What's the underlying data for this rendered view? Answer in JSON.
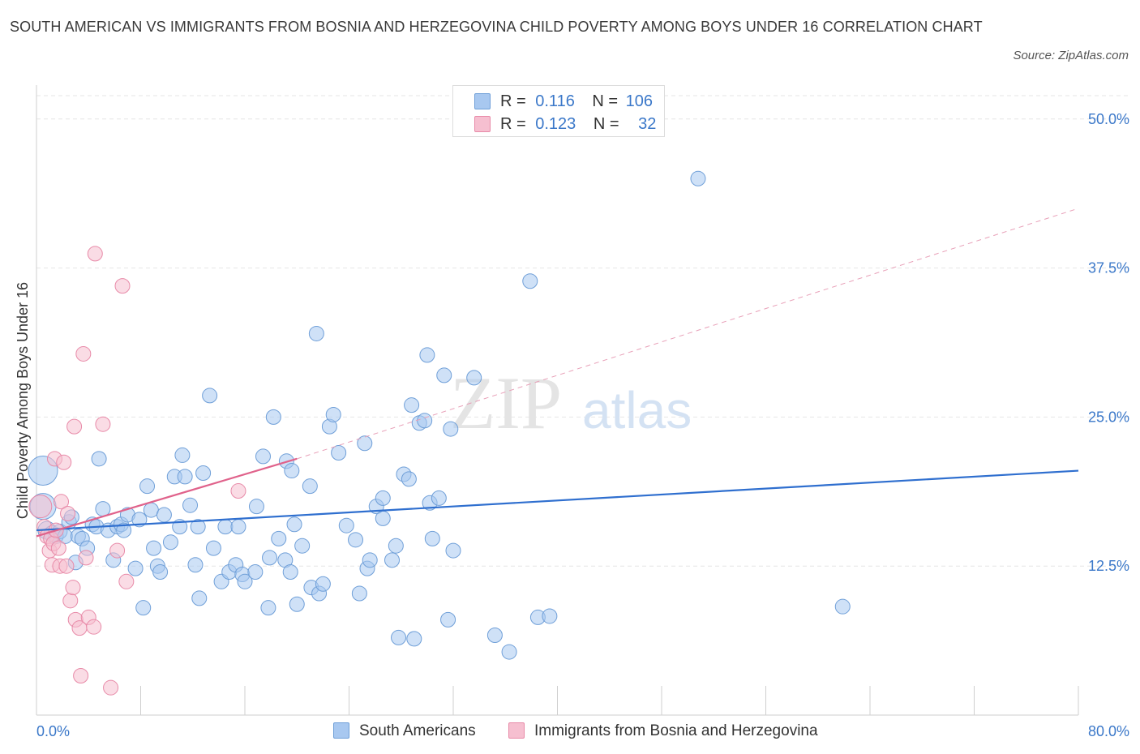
{
  "header": {
    "title": "SOUTH AMERICAN VS IMMIGRANTS FROM BOSNIA AND HERZEGOVINA CHILD POVERTY AMONG BOYS UNDER 16 CORRELATION CHART",
    "source": "Source: ZipAtlas.com"
  },
  "watermark": {
    "zip": "ZIP",
    "atlas": "atlas"
  },
  "colors": {
    "blue_fill": "#a8c8f0",
    "blue_stroke": "#6f9fd8",
    "blue_line": "#2f6fcf",
    "pink_fill": "#f6bfd0",
    "pink_stroke": "#e88aa8",
    "pink_line": "#e0628b",
    "axis_label": "#3b78c9",
    "grid": "#e6e6e6"
  },
  "legend": {
    "rows": [
      {
        "r_label": "R =",
        "r_value": "0.116",
        "n_label": "N =",
        "n_value": "106",
        "series": "blue"
      },
      {
        "r_label": "R =",
        "r_value": "0.123",
        "n_label": "N =",
        "n_value": "32",
        "series": "pink"
      }
    ]
  },
  "bottom_legend": [
    {
      "label": "South Americans",
      "series": "blue"
    },
    {
      "label": "Immigrants from Bosnia and Herzegovina",
      "series": "pink"
    }
  ],
  "chart_data": {
    "type": "scatter",
    "title": "SOUTH AMERICAN VS IMMIGRANTS FROM BOSNIA AND HERZEGOVINA CHILD POVERTY AMONG BOYS UNDER 16 CORRELATION CHART",
    "xlabel": "",
    "ylabel": "Child Poverty Among Boys Under 16",
    "xlim": [
      0,
      80
    ],
    "ylim": [
      0,
      52.5
    ],
    "x_tick_labels": [
      {
        "value": 0,
        "label": "0.0%"
      },
      {
        "value": 80,
        "label": "80.0%"
      }
    ],
    "y_tick_labels": [
      {
        "value": 12.5,
        "label": "12.5%"
      },
      {
        "value": 25,
        "label": "25.0%"
      },
      {
        "value": 37.5,
        "label": "37.5%"
      },
      {
        "value": 50,
        "label": "50.0%"
      }
    ],
    "x_minor_ticks": [
      8,
      16,
      24,
      32,
      40,
      48,
      56,
      64,
      72,
      80
    ],
    "grid": true,
    "series": [
      {
        "name": "South Americans",
        "color": "blue",
        "R": 0.116,
        "N": 106,
        "trend": {
          "x": [
            0,
            80
          ],
          "y": [
            15.5,
            20.5
          ],
          "style": "solid"
        },
        "points": [
          [
            0.5,
            20.5,
            18
          ],
          [
            0.5,
            17.5,
            16
          ],
          [
            0.8,
            15.5,
            11
          ],
          [
            1.2,
            15.2,
            10
          ],
          [
            1.5,
            15.0,
            9
          ],
          [
            1.8,
            15.4,
            9
          ],
          [
            2.2,
            15.0,
            9
          ],
          [
            2.5,
            16.2,
            9
          ],
          [
            2.7,
            16.6,
            9
          ],
          [
            3.0,
            12.8,
            9
          ],
          [
            3.2,
            15.0,
            9
          ],
          [
            3.5,
            14.8,
            9
          ],
          [
            3.9,
            14.0,
            9
          ],
          [
            4.3,
            16.0,
            9
          ],
          [
            4.6,
            15.8,
            9
          ],
          [
            4.8,
            21.5,
            9
          ],
          [
            5.1,
            17.3,
            9
          ],
          [
            5.5,
            15.5,
            9
          ],
          [
            5.9,
            13.0,
            9
          ],
          [
            6.2,
            15.8,
            9
          ],
          [
            6.5,
            16.0,
            9
          ],
          [
            6.7,
            15.5,
            9
          ],
          [
            7.0,
            16.8,
            9
          ],
          [
            7.6,
            12.3,
            9
          ],
          [
            7.9,
            16.4,
            9
          ],
          [
            8.2,
            9.0,
            9
          ],
          [
            8.5,
            19.2,
            9
          ],
          [
            8.8,
            17.2,
            9
          ],
          [
            9.0,
            14.0,
            9
          ],
          [
            9.3,
            12.5,
            9
          ],
          [
            9.5,
            12.0,
            9
          ],
          [
            9.8,
            16.8,
            9
          ],
          [
            10.3,
            14.5,
            9
          ],
          [
            10.6,
            20.0,
            9
          ],
          [
            11.0,
            15.8,
            9
          ],
          [
            11.2,
            21.8,
            9
          ],
          [
            11.4,
            20.0,
            9
          ],
          [
            11.8,
            17.6,
            9
          ],
          [
            12.2,
            12.6,
            9
          ],
          [
            12.4,
            15.8,
            9
          ],
          [
            12.5,
            9.8,
            9
          ],
          [
            12.8,
            20.3,
            9
          ],
          [
            13.3,
            26.8,
            9
          ],
          [
            13.6,
            14.0,
            9
          ],
          [
            14.2,
            11.2,
            9
          ],
          [
            14.5,
            15.8,
            9
          ],
          [
            14.8,
            12.0,
            9
          ],
          [
            15.3,
            12.6,
            9
          ],
          [
            15.5,
            15.8,
            9
          ],
          [
            15.8,
            11.8,
            9
          ],
          [
            16.0,
            11.2,
            9
          ],
          [
            16.8,
            12.0,
            9
          ],
          [
            16.9,
            17.5,
            9
          ],
          [
            17.4,
            21.7,
            9
          ],
          [
            17.8,
            9.0,
            9
          ],
          [
            17.9,
            13.2,
            9
          ],
          [
            18.2,
            25.0,
            9
          ],
          [
            18.6,
            14.8,
            9
          ],
          [
            19.1,
            13.0,
            9
          ],
          [
            19.2,
            21.3,
            9
          ],
          [
            19.5,
            12.0,
            9
          ],
          [
            19.8,
            16.0,
            9
          ],
          [
            19.6,
            20.5,
            9
          ],
          [
            20.0,
            9.3,
            9
          ],
          [
            20.4,
            14.2,
            9
          ],
          [
            21.0,
            19.2,
            9
          ],
          [
            21.1,
            10.7,
            9
          ],
          [
            21.5,
            32.0,
            9
          ],
          [
            21.7,
            10.2,
            9
          ],
          [
            22.0,
            11.0,
            9
          ],
          [
            22.5,
            24.2,
            9
          ],
          [
            22.8,
            25.2,
            9
          ],
          [
            23.2,
            22.0,
            9
          ],
          [
            23.8,
            15.9,
            9
          ],
          [
            24.5,
            14.7,
            9
          ],
          [
            24.8,
            10.2,
            9
          ],
          [
            25.2,
            22.8,
            9
          ],
          [
            25.4,
            12.3,
            9
          ],
          [
            25.6,
            13.0,
            9
          ],
          [
            26.1,
            17.5,
            9
          ],
          [
            26.6,
            16.5,
            9
          ],
          [
            26.6,
            18.2,
            9
          ],
          [
            27.3,
            13.0,
            9
          ],
          [
            27.6,
            14.2,
            9
          ],
          [
            27.8,
            6.5,
            9
          ],
          [
            28.2,
            20.2,
            9
          ],
          [
            28.6,
            19.8,
            9
          ],
          [
            28.8,
            26.0,
            9
          ],
          [
            29.0,
            6.4,
            9
          ],
          [
            29.4,
            24.5,
            9
          ],
          [
            29.8,
            24.7,
            9
          ],
          [
            30.0,
            30.2,
            9
          ],
          [
            30.2,
            17.8,
            9
          ],
          [
            30.4,
            14.8,
            9
          ],
          [
            30.9,
            18.2,
            9
          ],
          [
            31.3,
            28.5,
            9
          ],
          [
            31.6,
            8.0,
            9
          ],
          [
            31.8,
            24.0,
            9
          ],
          [
            32.0,
            13.8,
            9
          ],
          [
            33.6,
            28.3,
            9
          ],
          [
            35.2,
            6.7,
            9
          ],
          [
            36.3,
            5.3,
            9
          ],
          [
            37.9,
            36.4,
            9
          ],
          [
            38.5,
            8.2,
            9
          ],
          [
            39.4,
            8.3,
            9
          ],
          [
            50.8,
            45.0,
            9
          ],
          [
            61.9,
            9.1,
            9
          ]
        ]
      },
      {
        "name": "Immigrants from Bosnia and Herzegovina",
        "color": "pink",
        "R": 0.123,
        "N": 32,
        "trend": {
          "x": [
            0,
            20
          ],
          "y": [
            15.0,
            21.5
          ],
          "style": "solid",
          "extension": {
            "x": [
              20,
              80
            ],
            "y": [
              21.5,
              42.5
            ],
            "style": "dashed"
          }
        },
        "points": [
          [
            0.3,
            17.5,
            14
          ],
          [
            0.6,
            15.8,
            9
          ],
          [
            0.8,
            15.0,
            9
          ],
          [
            1.0,
            13.8,
            9
          ],
          [
            1.1,
            14.8,
            9
          ],
          [
            1.2,
            12.6,
            9
          ],
          [
            1.3,
            14.4,
            9
          ],
          [
            1.4,
            21.5,
            9
          ],
          [
            1.5,
            15.5,
            9
          ],
          [
            1.7,
            14.0,
            9
          ],
          [
            1.8,
            12.5,
            9
          ],
          [
            1.9,
            17.9,
            9
          ],
          [
            2.1,
            21.2,
            9
          ],
          [
            2.3,
            12.5,
            9
          ],
          [
            2.4,
            16.9,
            9
          ],
          [
            2.6,
            9.6,
            9
          ],
          [
            2.8,
            10.7,
            9
          ],
          [
            2.9,
            24.2,
            9
          ],
          [
            3.0,
            8.0,
            9
          ],
          [
            3.3,
            7.3,
            9
          ],
          [
            3.4,
            3.3,
            9
          ],
          [
            3.6,
            30.3,
            9
          ],
          [
            3.8,
            13.2,
            9
          ],
          [
            4.0,
            8.2,
            9
          ],
          [
            4.4,
            7.4,
            9
          ],
          [
            4.5,
            38.7,
            9
          ],
          [
            5.1,
            24.4,
            9
          ],
          [
            5.7,
            2.3,
            9
          ],
          [
            6.2,
            13.8,
            9
          ],
          [
            6.6,
            36.0,
            9
          ],
          [
            6.9,
            11.2,
            9
          ],
          [
            15.5,
            18.8,
            9
          ]
        ]
      }
    ]
  }
}
